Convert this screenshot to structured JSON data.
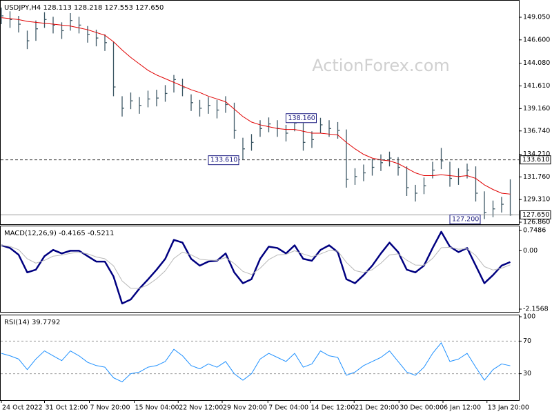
{
  "chart_data": [
    {
      "type": "ohlc",
      "title": "USDJPY,H4  128.113 128.218 127.553 127.650",
      "watermark": "ActionForex.com",
      "ylim": [
        126.636,
        150.544
      ],
      "yticks": [
        {
          "value": 149.05,
          "label": "149.050"
        },
        {
          "value": 146.6,
          "label": "146.600"
        },
        {
          "value": 144.08,
          "label": "144.080"
        },
        {
          "value": 141.61,
          "label": "141.610"
        },
        {
          "value": 139.16,
          "label": "139.160"
        },
        {
          "value": 136.74,
          "label": "136.740"
        },
        {
          "value": 134.21,
          "label": "134.210"
        },
        {
          "value": 131.76,
          "label": "131.760"
        },
        {
          "value": 129.31,
          "label": "129.310"
        },
        {
          "value": 126.86,
          "label": "126.860"
        }
      ],
      "bar_color": "#3d5865",
      "high": [
        150.1,
        149.7,
        149.2,
        147.6,
        148.7,
        149.6,
        149.1,
        148.5,
        149.5,
        149.1,
        148.1,
        147.7,
        147.2,
        146.4,
        140.5,
        140.9,
        140.4,
        141.1,
        141.2,
        141.7,
        142.8,
        142.4,
        140.7,
        140.1,
        140.4,
        140.1,
        140.5,
        139.8,
        136.0,
        136.4,
        137.9,
        138.2,
        137.9,
        137.4,
        138.0,
        137.6,
        136.7,
        138.16,
        137.9,
        137.7,
        136.9,
        132.7,
        133.1,
        133.7,
        134.2,
        134.5,
        133.9,
        132.9,
        130.9,
        131.7,
        133.4,
        134.9,
        133.4,
        132.7,
        133.2,
        132.9,
        130.2,
        129.2,
        129.6,
        131.5
      ],
      "low": [
        148.3,
        147.9,
        147.4,
        145.6,
        146.5,
        147.9,
        147.3,
        146.7,
        147.6,
        147.3,
        146.3,
        145.9,
        145.4,
        140.5,
        138.3,
        139.1,
        138.6,
        139.3,
        139.4,
        139.9,
        140.9,
        140.5,
        138.9,
        138.3,
        138.6,
        138.1,
        138.7,
        135.9,
        133.61,
        134.6,
        136.1,
        136.6,
        136.1,
        135.6,
        136.7,
        134.6,
        134.9,
        136.5,
        136.1,
        135.9,
        130.6,
        130.9,
        131.3,
        131.9,
        132.4,
        132.9,
        131.9,
        129.7,
        129.1,
        129.9,
        131.6,
        132.6,
        130.7,
        130.9,
        131.6,
        129.1,
        127.2,
        127.4,
        127.9,
        127.553
      ],
      "close": [
        149.2,
        148.8,
        148.3,
        146.5,
        147.8,
        148.8,
        148.2,
        147.6,
        148.7,
        148.2,
        147.2,
        146.8,
        146.3,
        141.5,
        139.2,
        140.0,
        139.5,
        140.2,
        140.3,
        140.8,
        142.3,
        141.4,
        139.8,
        139.2,
        139.5,
        139.0,
        139.6,
        136.8,
        134.8,
        135.5,
        137.0,
        137.5,
        137.0,
        136.5,
        137.6,
        135.5,
        135.8,
        137.4,
        137.0,
        136.8,
        131.5,
        131.8,
        132.2,
        132.8,
        133.3,
        133.8,
        132.8,
        130.6,
        130.0,
        130.8,
        132.5,
        133.5,
        131.6,
        131.8,
        132.5,
        130.0,
        127.9,
        128.3,
        128.8,
        127.65
      ],
      "ma": {
        "color": "#e00000",
        "values": [
          149.0,
          148.9,
          148.8,
          148.6,
          148.5,
          148.4,
          148.3,
          148.2,
          148.1,
          147.9,
          147.7,
          147.4,
          147.1,
          146.4,
          145.5,
          144.7,
          144.0,
          143.3,
          142.8,
          142.4,
          142.0,
          141.6,
          141.2,
          140.9,
          140.5,
          140.2,
          139.9,
          139.1,
          138.3,
          137.7,
          137.4,
          137.2,
          137.0,
          136.9,
          136.9,
          136.7,
          136.5,
          136.5,
          136.4,
          136.3,
          135.5,
          134.8,
          134.2,
          133.8,
          133.6,
          133.5,
          133.2,
          132.7,
          132.2,
          131.9,
          131.9,
          132.0,
          131.9,
          131.8,
          131.9,
          131.6,
          130.9,
          130.4,
          130.0,
          129.9
        ]
      },
      "levels": [
        {
          "value": 133.61,
          "label": "133.610",
          "style": "dashed"
        },
        {
          "value": 127.65,
          "label": "127.650",
          "style": "solid"
        }
      ],
      "callouts": [
        {
          "x": 37,
          "value": 138.16,
          "label": "138.160"
        },
        {
          "x": 28,
          "value": 133.61,
          "label": "133.610"
        },
        {
          "x": 56,
          "value": 127.2,
          "label": "127.200"
        }
      ]
    },
    {
      "type": "line",
      "title": "MACD(12,26,9) -0.4165 -0.5211",
      "ylim": [
        -2.1568,
        0.7486
      ],
      "yticks": [
        0.7486,
        {
          "value": 0,
          "label": "0.00"
        },
        -2.1568
      ],
      "grid": false,
      "series": [
        {
          "color": "#000080",
          "width": 2.5,
          "values": [
            0.2,
            0.1,
            -0.15,
            -0.8,
            -0.7,
            -0.2,
            0.03,
            -0.1,
            0,
            0,
            -0.2,
            -0.4,
            -0.4,
            -0.95,
            -1.95,
            -1.8,
            -1.4,
            -1.06,
            -0.7,
            -0.3,
            0.4,
            0.3,
            -0.3,
            -0.55,
            -0.4,
            -0.37,
            -0.1,
            -0.8,
            -1.2,
            -1.05,
            -0.3,
            0.15,
            0.1,
            -0.1,
            0.2,
            -0.3,
            -0.37,
            0.03,
            0.2,
            -0.05,
            -1.05,
            -1.2,
            -0.9,
            -0.55,
            -0.1,
            0.3,
            -0.05,
            -0.7,
            -0.8,
            -0.55,
            0.1,
            0.7,
            0.15,
            -0.05,
            0.1,
            -0.55,
            -1.2,
            -0.9,
            -0.55,
            -0.4165
          ]
        },
        {
          "color": "#b8b8b8",
          "width": 1,
          "values": [
            0.2,
            0.16,
            0.036,
            -0.298,
            -0.459,
            -0.355,
            -0.201,
            -0.161,
            -0.097,
            -0.058,
            -0.115,
            -0.229,
            -0.297,
            -0.558,
            -1.115,
            -1.389,
            -1.393,
            -1.26,
            -1.036,
            -0.742,
            -0.285,
            -0.051,
            -0.151,
            -0.311,
            -0.347,
            -0.356,
            -0.254,
            -0.472,
            -0.763,
            -0.878,
            -0.647,
            -0.328,
            -0.157,
            -0.134,
            0.0,
            -0.12,
            -0.22,
            -0.12,
            0.008,
            -0.015,
            -0.429,
            -0.737,
            -0.802,
            -0.701,
            -0.461,
            -0.157,
            -0.114,
            -0.348,
            -0.529,
            -0.537,
            -0.282,
            0.111,
            0.127,
            0.056,
            0.074,
            -0.176,
            -0.586,
            -0.712,
            -0.647,
            -0.5211
          ]
        }
      ]
    },
    {
      "type": "line",
      "title": "RSI(14) 39.7792",
      "ylim": [
        0,
        100
      ],
      "yticks": [
        100,
        70,
        30
      ],
      "grid": true,
      "series": [
        {
          "color": "#1e90ff",
          "width": 1,
          "values": [
            55,
            52,
            48,
            35,
            48,
            58,
            52,
            46,
            58,
            52,
            44,
            40,
            38,
            25,
            20,
            30,
            32,
            38,
            40,
            45,
            60,
            52,
            40,
            36,
            42,
            38,
            45,
            30,
            22,
            30,
            48,
            55,
            50,
            45,
            55,
            38,
            42,
            58,
            52,
            50,
            28,
            32,
            40,
            45,
            50,
            58,
            45,
            32,
            28,
            38,
            55,
            68,
            45,
            48,
            55,
            38,
            22,
            35,
            42,
            39.7792
          ]
        }
      ],
      "xlim": [
        0,
        60
      ],
      "xticks": [
        {
          "value": 0,
          "label": "24 Oct 2022"
        },
        {
          "value": 5,
          "label": "31 Oct 12:00"
        },
        {
          "value": 10.2,
          "label": "7 Nov 20:00"
        },
        {
          "value": 15.4,
          "label": "15 Nov 04:00"
        },
        {
          "value": 20.5,
          "label": "22 Nov 12:00"
        },
        {
          "value": 25.6,
          "label": "29 Nov 20:00"
        },
        {
          "value": 30.9,
          "label": "7 Dec 04:00"
        },
        {
          "value": 35.8,
          "label": "14 Dec 12:00"
        },
        {
          "value": 40.9,
          "label": "21 Dec 20:00"
        },
        {
          "value": 46.1,
          "label": "30 Dec 00:00"
        },
        {
          "value": 51.2,
          "label": "6 Jan 12:00"
        },
        {
          "value": 56.3,
          "label": "13 Jan 20:00"
        }
      ]
    }
  ]
}
